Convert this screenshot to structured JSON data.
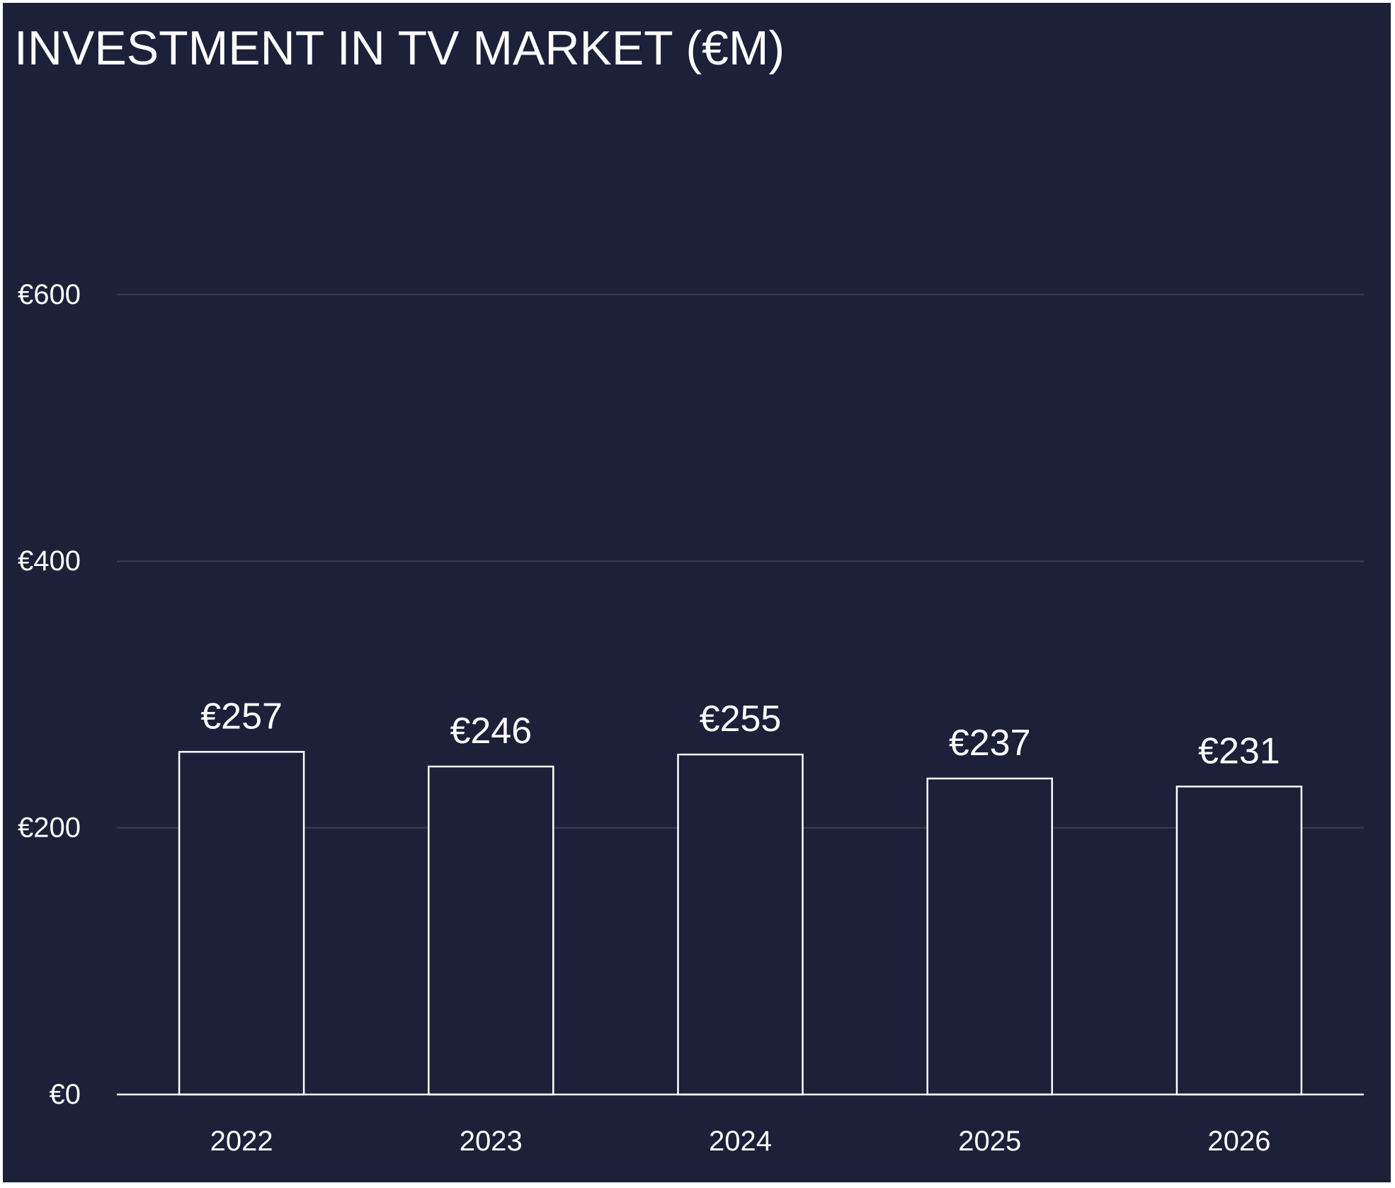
{
  "chart_data": {
    "type": "bar",
    "title": "INVESTMENT IN TV MARKET (€M)",
    "categories": [
      "2022",
      "2023",
      "2024",
      "2025",
      "2026"
    ],
    "values": [
      257,
      246,
      255,
      237,
      231
    ],
    "data_labels": [
      "€257",
      "€246",
      "€255",
      "€237",
      "€231"
    ],
    "y_ticks": [
      0,
      200,
      400,
      600
    ],
    "y_tick_labels": [
      "€0",
      "€200",
      "€400",
      "€600"
    ],
    "ylim": [
      0,
      800
    ],
    "xlabel": "",
    "ylabel": "",
    "grid": true,
    "legend": "none",
    "colors": {
      "background": "#1c2038",
      "bar_fill": "#1c2038",
      "bar_outline": "#ffffff",
      "text": "#ffffff",
      "gridline": "#3a3e52"
    }
  }
}
